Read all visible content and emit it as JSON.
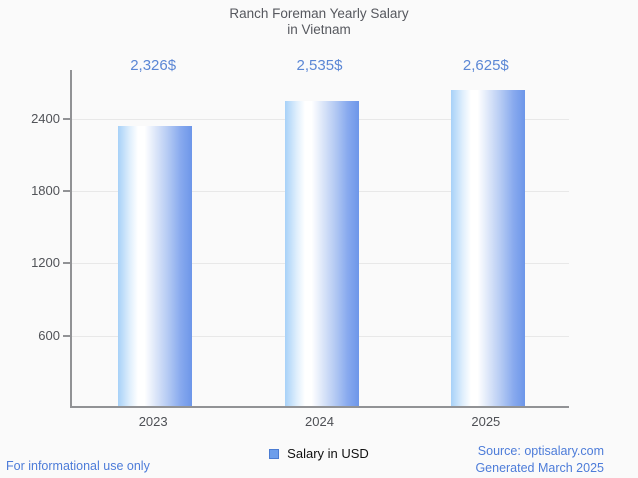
{
  "title": {
    "line1": "Ranch Foreman Yearly Salary",
    "line2": "in Vietnam"
  },
  "chart_data": {
    "type": "bar",
    "title": "Ranch Foreman Yearly Salary in Vietnam",
    "categories": [
      "2023",
      "2024",
      "2025"
    ],
    "values": [
      2326,
      2535,
      2625
    ],
    "value_labels": [
      "2,326$",
      "2,535$",
      "2,625$"
    ],
    "series_name": "Salary in USD",
    "xlabel": "",
    "ylabel": "",
    "y_ticks": [
      600,
      1200,
      1800,
      2400
    ],
    "ylim": [
      0,
      2805
    ],
    "grid": true,
    "legend_position": "bottom",
    "bar_gradient": [
      "#a7d1f8",
      "#ffffff",
      "#6d96e9"
    ]
  },
  "legend": {
    "label": "Salary in USD"
  },
  "footer": {
    "left": "For informational use only",
    "source": "Source: optisalary.com",
    "generated": "Generated March 2025"
  },
  "colors": {
    "background": "#fafafa",
    "accent_blue": "#5b87d5",
    "link_blue": "#4d7cd9",
    "axis": "#919295",
    "gridline": "#e8e8e8",
    "title_text": "#56585e",
    "tick_text": "#515358",
    "legend_marker": "#6d9eeb"
  }
}
